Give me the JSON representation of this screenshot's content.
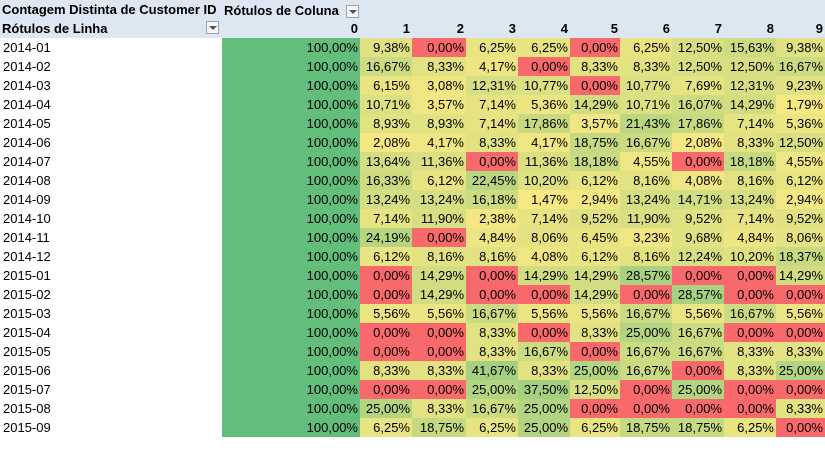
{
  "pivot": {
    "value_field": "Contagem Distinta de Customer ID",
    "column_label": "Rótulos de Coluna",
    "row_label": "Rótulos de Linha",
    "columns": [
      "0",
      "1",
      "2",
      "3",
      "4",
      "5",
      "6",
      "7",
      "8",
      "9"
    ],
    "rows": [
      {
        "label": "2014-01",
        "values": [
          "100,00%",
          "9,38%",
          "0,00%",
          "6,25%",
          "6,25%",
          "0,00%",
          "6,25%",
          "12,50%",
          "15,63%",
          "9,38%"
        ]
      },
      {
        "label": "2014-02",
        "values": [
          "100,00%",
          "16,67%",
          "8,33%",
          "4,17%",
          "0,00%",
          "8,33%",
          "8,33%",
          "12,50%",
          "12,50%",
          "16,67%"
        ]
      },
      {
        "label": "2014-03",
        "values": [
          "100,00%",
          "6,15%",
          "3,08%",
          "12,31%",
          "10,77%",
          "0,00%",
          "10,77%",
          "7,69%",
          "12,31%",
          "9,23%"
        ]
      },
      {
        "label": "2014-04",
        "values": [
          "100,00%",
          "10,71%",
          "3,57%",
          "7,14%",
          "5,36%",
          "14,29%",
          "10,71%",
          "16,07%",
          "14,29%",
          "1,79%"
        ]
      },
      {
        "label": "2014-05",
        "values": [
          "100,00%",
          "8,93%",
          "8,93%",
          "7,14%",
          "17,86%",
          "3,57%",
          "21,43%",
          "17,86%",
          "7,14%",
          "5,36%"
        ]
      },
      {
        "label": "2014-06",
        "values": [
          "100,00%",
          "2,08%",
          "4,17%",
          "8,33%",
          "4,17%",
          "18,75%",
          "16,67%",
          "2,08%",
          "8,33%",
          "12,50%"
        ]
      },
      {
        "label": "2014-07",
        "values": [
          "100,00%",
          "13,64%",
          "11,36%",
          "0,00%",
          "11,36%",
          "18,18%",
          "4,55%",
          "0,00%",
          "18,18%",
          "4,55%"
        ]
      },
      {
        "label": "2014-08",
        "values": [
          "100,00%",
          "16,33%",
          "6,12%",
          "22,45%",
          "10,20%",
          "6,12%",
          "8,16%",
          "4,08%",
          "8,16%",
          "6,12%"
        ]
      },
      {
        "label": "2014-09",
        "values": [
          "100,00%",
          "13,24%",
          "13,24%",
          "16,18%",
          "1,47%",
          "2,94%",
          "13,24%",
          "14,71%",
          "13,24%",
          "2,94%"
        ]
      },
      {
        "label": "2014-10",
        "values": [
          "100,00%",
          "7,14%",
          "11,90%",
          "2,38%",
          "7,14%",
          "9,52%",
          "11,90%",
          "9,52%",
          "7,14%",
          "9,52%"
        ]
      },
      {
        "label": "2014-11",
        "values": [
          "100,00%",
          "24,19%",
          "0,00%",
          "4,84%",
          "8,06%",
          "6,45%",
          "3,23%",
          "9,68%",
          "4,84%",
          "8,06%"
        ]
      },
      {
        "label": "2014-12",
        "values": [
          "100,00%",
          "6,12%",
          "8,16%",
          "8,16%",
          "4,08%",
          "6,12%",
          "8,16%",
          "12,24%",
          "10,20%",
          "18,37%"
        ]
      },
      {
        "label": "2015-01",
        "values": [
          "100,00%",
          "0,00%",
          "14,29%",
          "0,00%",
          "14,29%",
          "14,29%",
          "28,57%",
          "0,00%",
          "0,00%",
          "14,29%"
        ]
      },
      {
        "label": "2015-02",
        "values": [
          "100,00%",
          "0,00%",
          "14,29%",
          "0,00%",
          "0,00%",
          "14,29%",
          "0,00%",
          "28,57%",
          "0,00%",
          "0,00%"
        ]
      },
      {
        "label": "2015-03",
        "values": [
          "100,00%",
          "5,56%",
          "5,56%",
          "16,67%",
          "5,56%",
          "5,56%",
          "16,67%",
          "5,56%",
          "16,67%",
          "5,56%"
        ]
      },
      {
        "label": "2015-04",
        "values": [
          "100,00%",
          "0,00%",
          "0,00%",
          "8,33%",
          "0,00%",
          "8,33%",
          "25,00%",
          "16,67%",
          "0,00%",
          "0,00%"
        ]
      },
      {
        "label": "2015-05",
        "values": [
          "100,00%",
          "0,00%",
          "0,00%",
          "8,33%",
          "16,67%",
          "0,00%",
          "16,67%",
          "16,67%",
          "8,33%",
          "8,33%"
        ]
      },
      {
        "label": "2015-06",
        "values": [
          "100,00%",
          "8,33%",
          "8,33%",
          "41,67%",
          "8,33%",
          "25,00%",
          "16,67%",
          "0,00%",
          "8,33%",
          "25,00%"
        ]
      },
      {
        "label": "2015-07",
        "values": [
          "100,00%",
          "0,00%",
          "0,00%",
          "25,00%",
          "37,50%",
          "12,50%",
          "0,00%",
          "25,00%",
          "0,00%",
          "0,00%"
        ]
      },
      {
        "label": "2015-08",
        "values": [
          "100,00%",
          "25,00%",
          "8,33%",
          "16,67%",
          "25,00%",
          "0,00%",
          "0,00%",
          "0,00%",
          "0,00%",
          "8,33%"
        ]
      },
      {
        "label": "2015-09",
        "values": [
          "100,00%",
          "6,25%",
          "18,75%",
          "6,25%",
          "25,00%",
          "6,25%",
          "18,75%",
          "18,75%",
          "6,25%",
          "0,00%"
        ]
      }
    ]
  },
  "colors": {
    "header_bg": "#dde7f2",
    "full": "#63be7b",
    "zero": "#f8696b",
    "low": "#fbe983",
    "high": "#a4d080"
  },
  "icons": {
    "filter_dropdown": "chevron-down-icon"
  }
}
